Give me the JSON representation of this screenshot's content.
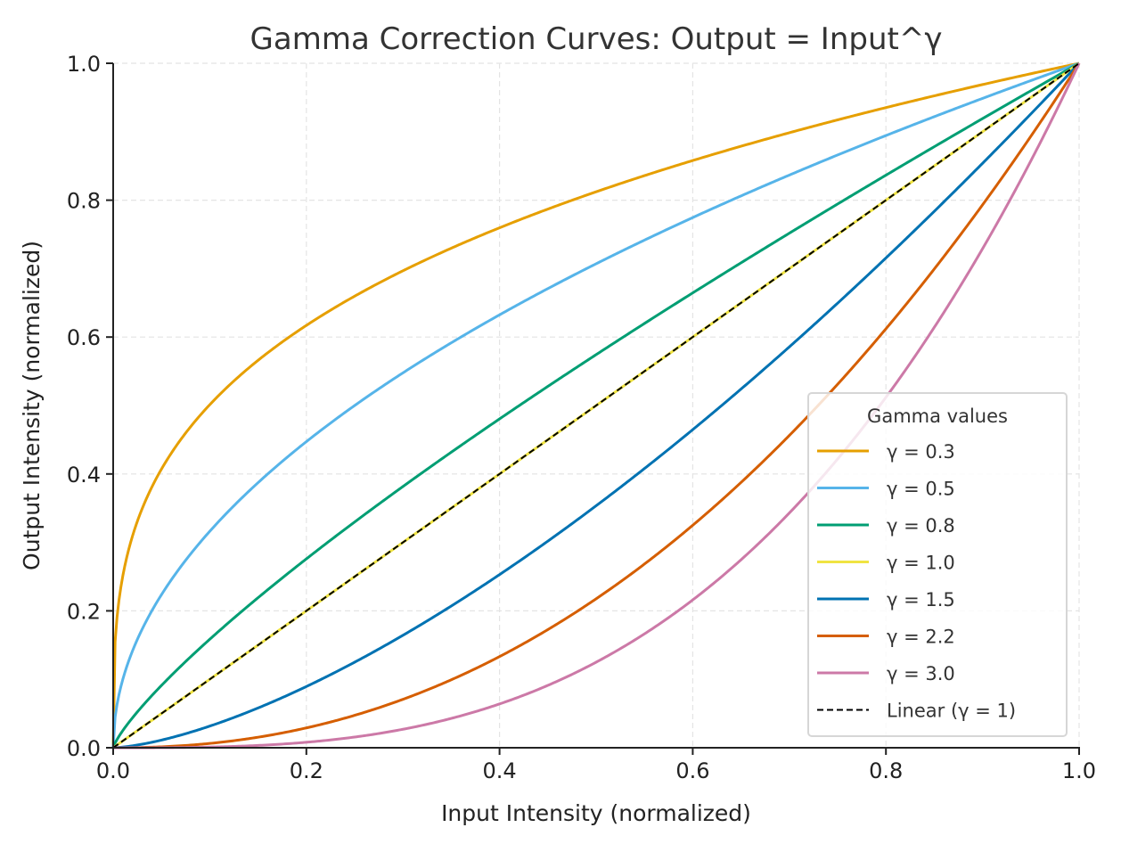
{
  "chart_data": {
    "type": "line",
    "title": "Gamma Correction Curves: Output = Input^γ",
    "xlabel": "Input Intensity (normalized)",
    "ylabel": "Output Intensity (normalized)",
    "xlim": [
      0,
      1
    ],
    "ylim": [
      0,
      1
    ],
    "xticks": [
      "0.0",
      "0.2",
      "0.4",
      "0.6",
      "0.8",
      "1.0"
    ],
    "yticks": [
      "0.0",
      "0.2",
      "0.4",
      "0.6",
      "0.8",
      "1.0"
    ],
    "grid": true,
    "function": "y = x^gamma",
    "x_range": [
      0,
      1
    ],
    "legend": {
      "title": "Gamma values",
      "placement": "lower-right"
    },
    "series": [
      {
        "name": "γ = 0.3",
        "gamma": 0.3,
        "color": "#E69F00",
        "style": "solid"
      },
      {
        "name": "γ = 0.5",
        "gamma": 0.5,
        "color": "#56B4E9",
        "style": "solid"
      },
      {
        "name": "γ = 0.8",
        "gamma": 0.8,
        "color": "#009E73",
        "style": "solid"
      },
      {
        "name": "γ = 1.0",
        "gamma": 1.0,
        "color": "#F0E442",
        "style": "solid"
      },
      {
        "name": "γ = 1.5",
        "gamma": 1.5,
        "color": "#0072B2",
        "style": "solid"
      },
      {
        "name": "γ = 2.2",
        "gamma": 2.2,
        "color": "#D55E00",
        "style": "solid"
      },
      {
        "name": "γ = 3.0",
        "gamma": 3.0,
        "color": "#CC79A7",
        "style": "solid"
      },
      {
        "name": "Linear (γ = 1)",
        "gamma": 1.0,
        "color": "#000000",
        "style": "dashed"
      }
    ]
  }
}
